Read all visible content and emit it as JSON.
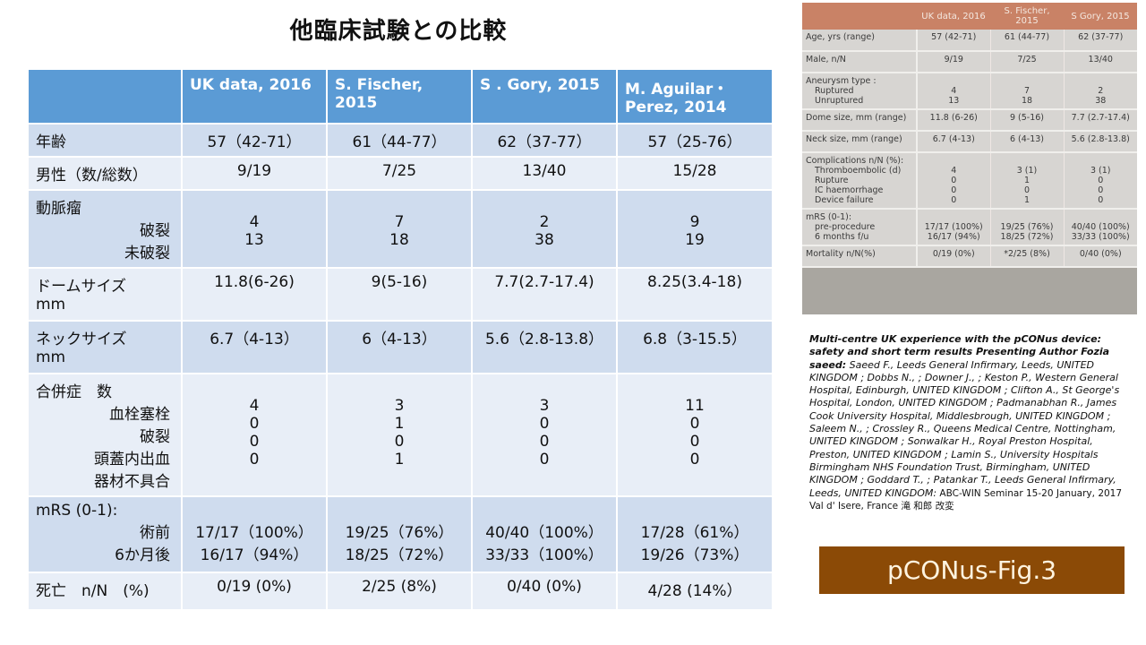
{
  "title": "他臨床試験との比較",
  "table": {
    "headers": [
      "",
      "UK data, 2016",
      "S. Fischer, 2015",
      "S . Gory, 2015",
      "M. Aguilar・Perez, 2014"
    ],
    "rows": [
      {
        "label": "年齢",
        "sub": [],
        "values": [
          "57（42-71）",
          "61（44-77）",
          "62（37-77）",
          "57（25-76）"
        ]
      },
      {
        "label": "男性（数/総数）",
        "sub": [],
        "values": [
          "9/19",
          "7/25",
          "13/40",
          "15/28"
        ]
      },
      {
        "label": "動脈瘤",
        "sub": [
          "破裂",
          "未破裂"
        ],
        "values": [
          [
            "4",
            "13"
          ],
          [
            "7",
            "18"
          ],
          [
            "2",
            "38"
          ],
          [
            "9",
            "19"
          ]
        ]
      },
      {
        "label": "ドームサイズ",
        "label2": "mm",
        "sub": [],
        "values": [
          "11.8(6-26)",
          "9(5-16)",
          "7.7(2.7-17.4)",
          "8.25(3.4-18)"
        ]
      },
      {
        "label": "ネックサイズ",
        "label2": "mm",
        "sub": [],
        "values": [
          "6.7（4-13）",
          "6（4-13）",
          "5.6（2.8-13.8）",
          "6.8（3-15.5）"
        ]
      },
      {
        "label": "合併症　数",
        "sub": [
          "血栓塞栓",
          "破裂",
          "頭蓋内出血",
          "器材不具合"
        ],
        "values": [
          [
            "4",
            "0",
            "0",
            "0"
          ],
          [
            "3",
            "1",
            "0",
            "1"
          ],
          [
            "3",
            "0",
            "0",
            "0"
          ],
          [
            "11",
            "0",
            "0",
            "0"
          ]
        ]
      },
      {
        "label": "mRS (0-1):",
        "sub": [
          "術前",
          "6か月後"
        ],
        "values": [
          [
            "17/17（100%）",
            "16/17（94%）"
          ],
          [
            "19/25（76%）",
            "18/25（72%）"
          ],
          [
            "40/40（100%）",
            "33/33（100%）"
          ],
          [
            "17/28（61%）",
            "19/26（73%）"
          ]
        ]
      },
      {
        "label": "死亡　n/N　(%)",
        "sub": [],
        "values": [
          "0/19 (0%)",
          "2/25 (8%)",
          "0/40 (0%)",
          "4/28 (14%）"
        ]
      }
    ]
  },
  "photo": {
    "headers": [
      "",
      "UK data, 2016",
      "S. Fischer, 2015",
      "S Gory, 2015"
    ],
    "rows": [
      {
        "label": [
          "Age, yrs (range)"
        ],
        "values": [
          [
            "57 (42-71)"
          ],
          [
            "61 (44-77)"
          ],
          [
            "62 (37-77)"
          ]
        ]
      },
      {
        "label": [
          "Male, n/N"
        ],
        "values": [
          [
            "9/19"
          ],
          [
            "7/25"
          ],
          [
            "13/40"
          ]
        ]
      },
      {
        "label": [
          "Aneurysm type :",
          "Ruptured",
          "Unruptured"
        ],
        "values": [
          [
            "",
            "4",
            "13"
          ],
          [
            "",
            "7",
            "18"
          ],
          [
            "",
            "2",
            "38"
          ]
        ]
      },
      {
        "label": [
          "Dome size, mm (range)"
        ],
        "values": [
          [
            "11.8 (6-26)"
          ],
          [
            "9 (5-16)"
          ],
          [
            "7.7 (2.7-17.4)"
          ]
        ]
      },
      {
        "label": [
          "Neck size, mm (range)"
        ],
        "values": [
          [
            "6.7 (4-13)"
          ],
          [
            "6 (4-13)"
          ],
          [
            "5.6 (2.8-13.8)"
          ]
        ]
      },
      {
        "label": [
          "Complications n/N (%):",
          "Thromboembolic (d)",
          "Rupture",
          "IC haemorrhage",
          "Device failure"
        ],
        "values": [
          [
            "",
            "4",
            "0",
            "0",
            "0"
          ],
          [
            "",
            "3 (1)",
            "1",
            "0",
            "1"
          ],
          [
            "",
            "3 (1)",
            "0",
            "0",
            "0"
          ]
        ]
      },
      {
        "label": [
          "mRS (0-1):",
          "pre-procedure",
          "6 months f/u"
        ],
        "values": [
          [
            "",
            "17/17 (100%)",
            "16/17 (94%)"
          ],
          [
            "",
            "19/25 (76%)",
            "18/25 (72%)"
          ],
          [
            "",
            "40/40 (100%)",
            "33/33 (100%)"
          ]
        ]
      },
      {
        "label": [
          "Mortality n/N(%)"
        ],
        "values": [
          [
            "0/19 (0%)"
          ],
          [
            "*2/25 (8%)"
          ],
          [
            "0/40 (0%)"
          ]
        ]
      }
    ]
  },
  "caption": {
    "bold": "Multi-centre UK experience with the pCONus device: safety and short term results Presenting Author Fozia saeed:",
    "authors": " Saeed F., Leeds General Infirmary, Leeds, UNITED KINGDOM ; Dobbs N., ; Downer J., ; Keston P., Western General Hospital, Edinburgh, UNITED KINGDOM ; Clifton A., St George's Hospital, London, UNITED KINGDOM ; Padmanabhan R., James Cook University Hospital, Middlesbrough, UNITED KINGDOM ; Saleem N., ; Crossley R., Queens Medical Centre, Nottingham, UNITED KINGDOM ; Sonwalkar H., Royal Preston Hospital, Preston, UNITED KINGDOM ; Lamin S., University Hospitals Birmingham NHS Foundation Trust, Birmingham, UNITED KINGDOM ; Goddard T., ; Patankar T., Leeds General Infirmary, Leeds, UNITED KINGDOM:",
    "source": " ABC-WIN Seminar  15-20 January, 2017 Val d' Isere, France 滝 和郎 改変"
  },
  "fig_label": "pCONus-Fig.3"
}
